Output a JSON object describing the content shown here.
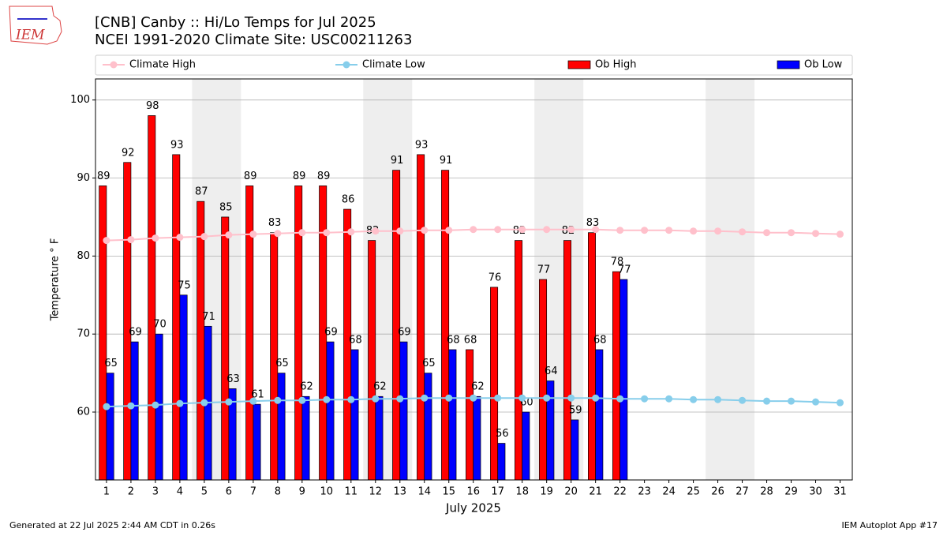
{
  "chart_data": {
    "type": "bar_line",
    "logo_text": "IEM",
    "title": "[CNB] Canby :: Hi/Lo Temps for Jul 2025",
    "subtitle": "NCEI 1991-2020 Climate Site: USC00211263",
    "xlabel": "July 2025",
    "ylabel": "Temperature $^\\circ$F",
    "footer_left": "Generated at 22 Jul 2025 2:44 AM CDT in 0.26s",
    "footer_right": "IEM Autoplot App #17",
    "x": [
      1,
      2,
      3,
      4,
      5,
      6,
      7,
      8,
      9,
      10,
      11,
      12,
      13,
      14,
      15,
      16,
      17,
      18,
      19,
      20,
      21,
      22,
      23,
      24,
      25,
      26,
      27,
      28,
      29,
      30,
      31
    ],
    "xticks": [
      1,
      2,
      3,
      4,
      5,
      6,
      7,
      8,
      9,
      10,
      11,
      12,
      13,
      14,
      15,
      16,
      17,
      18,
      19,
      20,
      21,
      22,
      23,
      24,
      25,
      26,
      27,
      28,
      29,
      30,
      31
    ],
    "xlim": [
      0.55,
      31.5
    ],
    "ylim": [
      51.3,
      102.7
    ],
    "yticks": [
      60,
      70,
      80,
      90,
      100
    ],
    "grid": true,
    "weekend_spans": [
      [
        4.5,
        6.5
      ],
      [
        11.5,
        13.5
      ],
      [
        18.5,
        20.5
      ],
      [
        25.5,
        27.5
      ]
    ],
    "series": [
      {
        "name": "Climate High",
        "kind": "line",
        "color": "#ffc0cb",
        "values": [
          82.0,
          82.1,
          82.3,
          82.4,
          82.5,
          82.7,
          82.8,
          82.9,
          83.0,
          83.0,
          83.1,
          83.2,
          83.2,
          83.3,
          83.3,
          83.4,
          83.4,
          83.4,
          83.4,
          83.4,
          83.4,
          83.3,
          83.3,
          83.3,
          83.2,
          83.2,
          83.1,
          83.0,
          83.0,
          82.9,
          82.8
        ]
      },
      {
        "name": "Climate Low",
        "kind": "line",
        "color": "#87ceeb",
        "values": [
          60.7,
          60.8,
          60.9,
          61.1,
          61.2,
          61.3,
          61.4,
          61.5,
          61.5,
          61.6,
          61.6,
          61.7,
          61.7,
          61.8,
          61.8,
          61.8,
          61.8,
          61.8,
          61.8,
          61.8,
          61.8,
          61.7,
          61.7,
          61.7,
          61.6,
          61.6,
          61.5,
          61.4,
          61.4,
          61.3,
          61.2
        ]
      },
      {
        "name": "Ob High",
        "kind": "bar",
        "color": "#ff0000",
        "values": [
          89,
          92,
          98,
          93,
          87,
          85,
          89,
          83,
          89,
          89,
          86,
          82,
          91,
          93,
          91,
          68,
          76,
          82,
          77,
          82,
          83,
          78,
          null,
          null,
          null,
          null,
          null,
          null,
          null,
          null,
          null
        ]
      },
      {
        "name": "Ob Low",
        "kind": "bar",
        "color": "#0000ff",
        "values": [
          65,
          69,
          70,
          75,
          71,
          63,
          61,
          65,
          62,
          69,
          68,
          62,
          69,
          65,
          68,
          62,
          56,
          60,
          64,
          59,
          68,
          77,
          null,
          null,
          null,
          null,
          null,
          null,
          null,
          null,
          null
        ]
      }
    ]
  }
}
